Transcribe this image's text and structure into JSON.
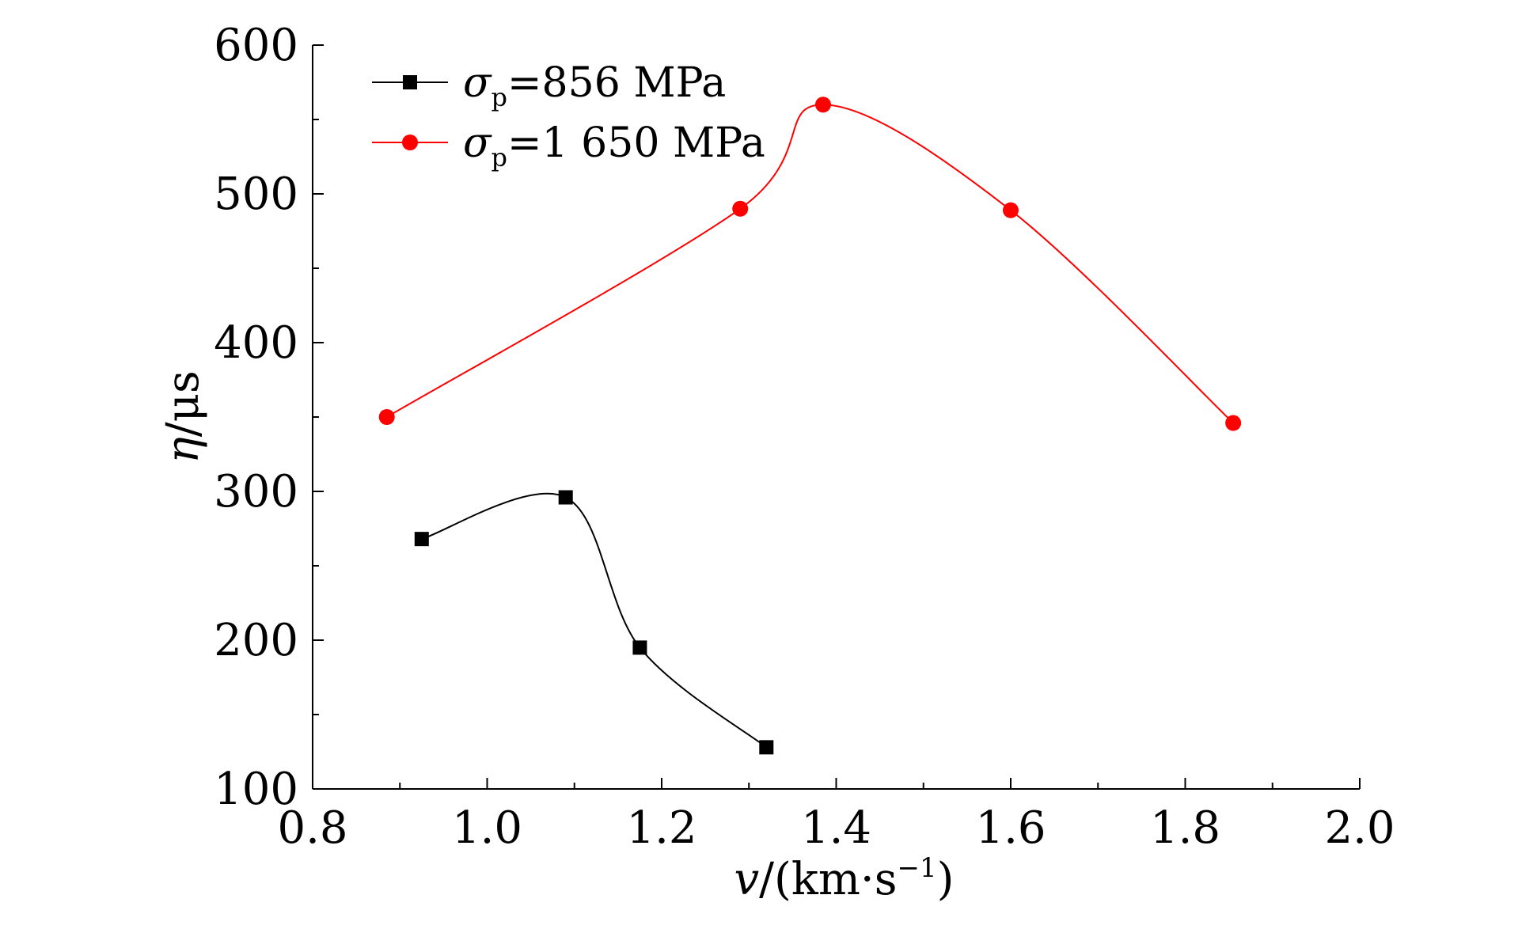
{
  "chart_data": {
    "type": "scatter",
    "xlabel": {
      "symbol": "v",
      "text": "/(km·s",
      "sup": "−1",
      "close": ")"
    },
    "ylabel": {
      "symbol": "η",
      "text": "/μs"
    },
    "xlim": [
      0.8,
      2.0
    ],
    "ylim": [
      100,
      600
    ],
    "xticks": [
      "0.8",
      "1.0",
      "1.2",
      "1.4",
      "1.6",
      "1.8",
      "2.0"
    ],
    "yticks": [
      "100",
      "200",
      "300",
      "400",
      "500",
      "600"
    ],
    "grid": false,
    "legend_position": "top-left",
    "series": [
      {
        "name": {
          "symbol": "σ",
          "sub": "p",
          "text": "=856 MPa"
        },
        "color": "#000000",
        "marker": "square",
        "x": [
          0.925,
          1.09,
          1.175,
          1.32
        ],
        "y": [
          268,
          296,
          195,
          128
        ],
        "fit_curve": true
      },
      {
        "name": {
          "symbol": "σ",
          "sub": "p",
          "text": "=1 650 MPa"
        },
        "color": "#ff0000",
        "marker": "circle",
        "x": [
          0.885,
          1.29,
          1.385,
          1.6,
          1.855
        ],
        "y": [
          350,
          490,
          560,
          489,
          346
        ],
        "fit_curve": true
      }
    ]
  }
}
